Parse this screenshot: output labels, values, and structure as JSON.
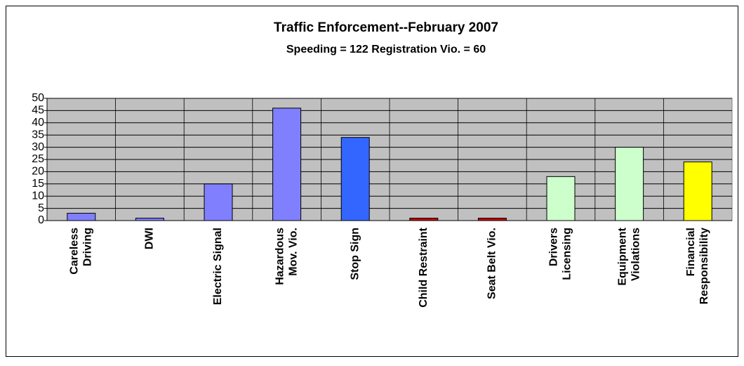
{
  "chart_data": {
    "type": "bar",
    "title": "Traffic Enforcement--February 2007",
    "subtitle": "Speeding = 122  Registration Vio. = 60",
    "categories": [
      [
        "Careless",
        "Driving"
      ],
      [
        "DWI"
      ],
      [
        "Electric Signal"
      ],
      [
        "Hazardous",
        "Mov. Vio."
      ],
      [
        "Stop Sign"
      ],
      [
        "Child Restraint"
      ],
      [
        "Seat Belt Vio."
      ],
      [
        "Drivers",
        "Licensing"
      ],
      [
        "Equipment",
        "Violations"
      ],
      [
        "Financial",
        "Responsibility"
      ]
    ],
    "values": [
      3,
      1,
      15,
      46,
      34,
      1,
      1,
      18,
      30,
      24
    ],
    "colors": [
      "#8080ff",
      "#8080ff",
      "#8080ff",
      "#8080ff",
      "#3366ff",
      "#cc0000",
      "#cc0000",
      "#ccffcc",
      "#ccffcc",
      "#ffff00"
    ],
    "ylim": [
      0,
      50
    ],
    "yticks": [
      0,
      5,
      10,
      15,
      20,
      25,
      30,
      35,
      40,
      45,
      50
    ],
    "grid": true
  }
}
